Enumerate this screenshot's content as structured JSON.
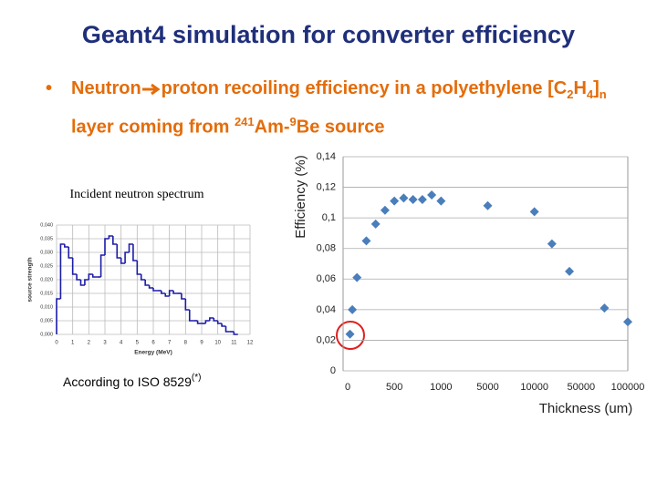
{
  "title": "Geant4 simulation for converter efficiency",
  "bullet": {
    "parts": [
      "Neutron",
      "proton recoiling efficiency in a polyethylene [C",
      "2",
      "H",
      "4",
      "]",
      "n",
      "layer coming from",
      "241",
      "Am-",
      "9",
      "Be source"
    ]
  },
  "note": {
    "text": "According to ISO 8529",
    "sup": "(*)"
  },
  "chart_data": [
    {
      "type": "histogram",
      "title": "Incident neutron spectrum",
      "x_label": "Energy (MeV)",
      "y_label": "source strength",
      "color": "#1c1ca8",
      "grid": true,
      "bins": [
        0,
        0.25,
        0.5,
        0.75,
        1,
        1.25,
        1.5,
        1.75,
        2,
        2.25,
        2.5,
        2.75,
        3,
        3.25,
        3.5,
        3.75,
        4,
        4.25,
        4.5,
        4.75,
        5,
        5.25,
        5.5,
        5.75,
        6,
        6.25,
        6.5,
        6.75,
        7,
        7.25,
        7.5,
        7.75,
        8,
        8.25,
        8.5,
        8.75,
        9,
        9.25,
        9.5,
        9.75,
        10,
        10.25,
        10.5,
        10.75,
        11,
        11.25
      ],
      "values": [
        0.013,
        0.033,
        0.032,
        0.028,
        0.022,
        0.02,
        0.018,
        0.02,
        0.022,
        0.021,
        0.021,
        0.029,
        0.035,
        0.036,
        0.033,
        0.028,
        0.026,
        0.03,
        0.033,
        0.027,
        0.022,
        0.02,
        0.018,
        0.017,
        0.016,
        0.016,
        0.015,
        0.014,
        0.016,
        0.015,
        0.015,
        0.013,
        0.009,
        0.005,
        0.005,
        0.004,
        0.004,
        0.005,
        0.006,
        0.005,
        0.004,
        0.003,
        0.001,
        0.001,
        0
      ],
      "xlim": [
        0,
        12
      ],
      "xticks": [
        0,
        1,
        2,
        3,
        4,
        5,
        6,
        7,
        8,
        9,
        10,
        11,
        12
      ],
      "ylim": [
        0,
        0.04
      ],
      "yticks": [
        {
          "value": 0,
          "label": "0,000"
        },
        {
          "value": 0.005,
          "label": "0,005"
        },
        {
          "value": 0.01,
          "label": "0,010"
        },
        {
          "value": 0.015,
          "label": "0,015"
        },
        {
          "value": 0.02,
          "label": "0,020"
        },
        {
          "value": 0.025,
          "label": "0,025"
        },
        {
          "value": 0.03,
          "label": "0,030"
        },
        {
          "value": 0.035,
          "label": "0,035"
        },
        {
          "value": 0.04,
          "label": "0,040"
        }
      ]
    },
    {
      "type": "scatter",
      "x_label": "Thickness (um)",
      "y_label": "Efficiency (%)",
      "color": "#4a7ebb",
      "grid": true,
      "x": [
        25,
        50,
        100,
        200,
        300,
        400,
        500,
        600,
        700,
        800,
        900,
        1000,
        5000,
        10000,
        25000,
        40000,
        75000,
        100000
      ],
      "values": [
        0.024,
        0.04,
        0.061,
        0.085,
        0.096,
        0.105,
        0.111,
        0.113,
        0.112,
        0.112,
        0.115,
        0.111,
        0.108,
        0.104,
        0.083,
        0.065,
        0.041,
        0.032
      ],
      "xlim": [
        0,
        100000
      ],
      "xticks": [
        0,
        500,
        1000,
        5000,
        10000,
        50000,
        100000
      ],
      "ylim": [
        0,
        0.14
      ],
      "yticks": [
        0,
        {
          "value": 0.02,
          "label": "0,02"
        },
        {
          "value": 0.04,
          "label": "0,04"
        },
        {
          "value": 0.06,
          "label": "0,06"
        },
        {
          "value": 0.08,
          "label": "0,08"
        },
        {
          "value": 0.1,
          "label": "0,1"
        },
        {
          "value": 0.12,
          "label": "0,12"
        },
        {
          "value": 0.14,
          "label": "0,14"
        }
      ]
    }
  ]
}
